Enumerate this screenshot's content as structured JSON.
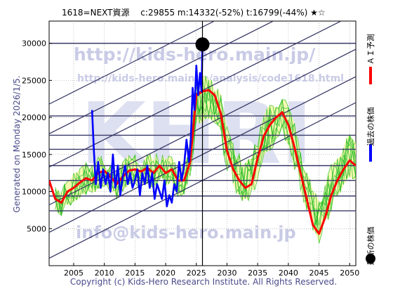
{
  "header": {
    "title": "1618=NEXT資源　 c:29855  m:14332(-52%)  t:16799(-44%)  ★☆"
  },
  "side_left": "Generated on Monday 2026/1/5.",
  "footer": "Copyright (c) Kids-Hero Research Institute. All Rights Reserved.",
  "watermarks": {
    "top": "http://kids-hero.main.jp/",
    "mid": "http://kids-hero.main.jp/analysis/code1618.html",
    "bottom": "info@kids-hero.main.jp",
    "big": "KHRI"
  },
  "legend": [
    {
      "label": "ＡＩ予測",
      "color": "#ff0000",
      "marker": "line"
    },
    {
      "label": "過去の株価",
      "color": "#0000ff",
      "marker": "line"
    },
    {
      "label": "最新の株価",
      "color": "#000000",
      "marker": "dot"
    }
  ],
  "colors": {
    "forecast": "#ff0000",
    "past_price": "#0000ff",
    "ensemble": "#22bb22",
    "band_fill": "#f5f7a8",
    "trend_lines": "#303060",
    "h_lines": "#3a3a6a",
    "latest_marker": "#000000"
  },
  "chart_data": {
    "type": "line",
    "xlim": [
      2001,
      2051
    ],
    "ylim": [
      0,
      33000
    ],
    "x_ticks": [
      2005,
      2010,
      2015,
      2020,
      2025,
      2030,
      2035,
      2040,
      2045,
      2050
    ],
    "y_ticks": [
      5000,
      10000,
      15000,
      20000,
      25000,
      30000
    ],
    "grid": "dotted",
    "legend_position": "right side, vertical",
    "latest_point": {
      "year": 2026.0,
      "price": 29855
    },
    "vertical_marker_year": 2026.0,
    "horizontal_levels": [
      7400,
      9400,
      11500,
      13500,
      15700,
      17600,
      20200,
      30000
    ],
    "trend_lines": [
      {
        "from": [
          2001,
          1000
        ],
        "to": [
          2051,
          22000
        ]
      },
      {
        "from": [
          2001,
          4500
        ],
        "to": [
          2051,
          25500
        ]
      },
      {
        "from": [
          2001,
          8200
        ],
        "to": [
          2051,
          29200
        ]
      },
      {
        "from": [
          2001,
          13300
        ],
        "to": [
          2051,
          34000
        ]
      },
      {
        "from": [
          2001,
          17800
        ],
        "to": [
          2051,
          38600
        ]
      },
      {
        "from": [
          2001,
          21800
        ],
        "to": [
          2051,
          42600
        ]
      }
    ],
    "series": [
      {
        "name": "ＡＩ予測",
        "x": [
          2001,
          2002,
          2003,
          2004,
          2005,
          2006,
          2007,
          2008,
          2009,
          2010,
          2011,
          2012,
          2013,
          2014,
          2015,
          2016,
          2017,
          2018,
          2019,
          2020,
          2021,
          2022,
          2023,
          2024,
          2025,
          2026,
          2027,
          2028,
          2029,
          2030,
          2031,
          2032,
          2033,
          2034,
          2035,
          2036,
          2037,
          2038,
          2039,
          2040,
          2041,
          2042,
          2043,
          2044,
          2045,
          2046,
          2047,
          2048,
          2049,
          2050,
          2051
        ],
        "y": [
          11500,
          9000,
          8500,
          10000,
          10500,
          11200,
          11800,
          11500,
          12500,
          12800,
          12000,
          11000,
          12000,
          12800,
          13000,
          12700,
          13200,
          12500,
          13500,
          12500,
          13000,
          11500,
          11500,
          14000,
          23000,
          23500,
          23700,
          23000,
          20500,
          15500,
          13000,
          11500,
          10500,
          11000,
          14500,
          17500,
          19000,
          20000,
          20700,
          19000,
          16000,
          12500,
          9000,
          5500,
          4300,
          6500,
          9500,
          11500,
          13000,
          14200,
          13500
        ]
      },
      {
        "name": "過去の株価",
        "x": [
          2008.0,
          2008.3,
          2008.6,
          2009.0,
          2009.4,
          2009.8,
          2010.2,
          2010.6,
          2011.0,
          2011.4,
          2011.8,
          2012.2,
          2012.6,
          2013.0,
          2013.4,
          2013.8,
          2014.2,
          2014.6,
          2015.0,
          2015.4,
          2015.8,
          2016.2,
          2016.6,
          2017.0,
          2017.4,
          2017.8,
          2018.2,
          2018.6,
          2019.0,
          2019.4,
          2019.8,
          2020.2,
          2020.6,
          2021.0,
          2021.4,
          2021.8,
          2022.2,
          2022.6,
          2023.0,
          2023.4,
          2023.8,
          2024.1,
          2024.4,
          2024.7,
          2025.0,
          2025.3,
          2025.6,
          2025.85,
          2026.0
        ],
        "y": [
          21000,
          15500,
          11000,
          14000,
          10500,
          13000,
          11000,
          12500,
          10000,
          15000,
          10500,
          13500,
          9500,
          12000,
          13500,
          11000,
          12500,
          10500,
          11500,
          13000,
          9500,
          12500,
          11000,
          13500,
          10500,
          12500,
          9000,
          11000,
          10000,
          9000,
          11500,
          8000,
          9500,
          8500,
          11000,
          10000,
          14000,
          11500,
          13500,
          17000,
          14000,
          17000,
          24000,
          21000,
          27000,
          23000,
          26000,
          23500,
          29855
        ]
      }
    ]
  }
}
